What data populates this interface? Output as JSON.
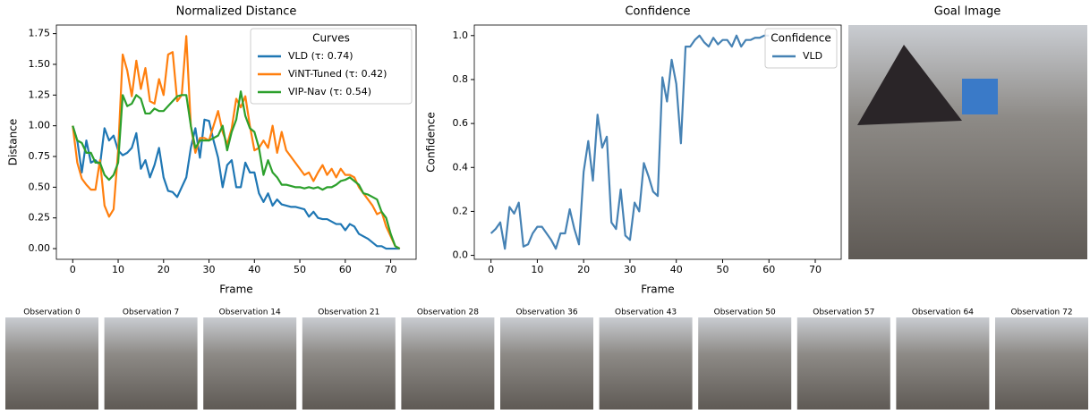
{
  "chart_data": [
    {
      "type": "line",
      "title": "Normalized Distance",
      "x_label": "Frame",
      "y_label": "Distance",
      "xlim": [
        -3.6,
        75.6
      ],
      "ylim": [
        -0.087,
        1.82
      ],
      "xticks": [
        0,
        10,
        20,
        30,
        40,
        50,
        60,
        70
      ],
      "yticks": [
        {
          "value": 0,
          "label": "0.00"
        },
        0.25,
        {
          "value": 0.5,
          "label": "0.50"
        },
        0.75,
        {
          "value": 1,
          "label": "1.00"
        },
        1.25,
        {
          "value": 1.5,
          "label": "1.50"
        },
        1.75
      ],
      "legend_title": "Curves",
      "legend": "upper right",
      "x": [
        0,
        1,
        2,
        3,
        4,
        5,
        6,
        7,
        8,
        9,
        10,
        11,
        12,
        13,
        14,
        15,
        16,
        17,
        18,
        19,
        20,
        21,
        22,
        23,
        24,
        25,
        26,
        27,
        28,
        29,
        30,
        31,
        32,
        33,
        34,
        35,
        36,
        37,
        38,
        39,
        40,
        41,
        42,
        43,
        44,
        45,
        46,
        47,
        48,
        49,
        50,
        51,
        52,
        53,
        54,
        55,
        56,
        57,
        58,
        59,
        60,
        61,
        62,
        63,
        64,
        65,
        66,
        67,
        68,
        69,
        70,
        71,
        72
      ],
      "series": [
        {
          "name": "VLD (τ: 0.74)",
          "color": "#1f77b4",
          "values": [
            1.0,
            0.88,
            0.62,
            0.88,
            0.7,
            0.72,
            0.68,
            0.98,
            0.88,
            0.92,
            0.8,
            0.76,
            0.78,
            0.82,
            0.94,
            0.65,
            0.72,
            0.58,
            0.68,
            0.82,
            0.58,
            0.47,
            0.46,
            0.42,
            0.5,
            0.58,
            0.82,
            0.98,
            0.74,
            1.05,
            1.04,
            0.88,
            0.74,
            0.5,
            0.68,
            0.72,
            0.5,
            0.5,
            0.7,
            0.62,
            0.62,
            0.45,
            0.38,
            0.45,
            0.35,
            0.4,
            0.36,
            0.35,
            0.34,
            0.34,
            0.33,
            0.32,
            0.26,
            0.3,
            0.25,
            0.24,
            0.24,
            0.22,
            0.2,
            0.2,
            0.15,
            0.2,
            0.18,
            0.12,
            0.1,
            0.08,
            0.05,
            0.02,
            0.02,
            0.0,
            0.0,
            0.0,
            0.0
          ]
        },
        {
          "name": "ViNT-Tuned (τ: 0.42)",
          "color": "#ff7f0e",
          "values": [
            1.0,
            0.7,
            0.57,
            0.52,
            0.48,
            0.48,
            0.72,
            0.35,
            0.26,
            0.32,
            0.8,
            1.58,
            1.45,
            1.24,
            1.53,
            1.3,
            1.47,
            1.2,
            1.18,
            1.38,
            1.25,
            1.58,
            1.6,
            1.2,
            1.25,
            1.73,
            1.0,
            0.78,
            0.9,
            0.9,
            0.88,
            1.0,
            1.12,
            0.95,
            0.85,
            0.98,
            1.22,
            1.15,
            1.24,
            1.0,
            0.8,
            0.82,
            0.88,
            0.82,
            1.0,
            0.78,
            0.95,
            0.8,
            0.75,
            0.7,
            0.65,
            0.6,
            0.62,
            0.55,
            0.62,
            0.68,
            0.6,
            0.65,
            0.58,
            0.65,
            0.6,
            0.6,
            0.58,
            0.5,
            0.45,
            0.4,
            0.35,
            0.28,
            0.3,
            0.18,
            0.1,
            0.02,
            0.0
          ]
        },
        {
          "name": "VIP-Nav (τ: 0.54)",
          "color": "#2ca02c",
          "values": [
            1.0,
            0.88,
            0.86,
            0.78,
            0.78,
            0.7,
            0.7,
            0.6,
            0.56,
            0.6,
            0.7,
            1.25,
            1.16,
            1.18,
            1.25,
            1.22,
            1.1,
            1.1,
            1.14,
            1.12,
            1.12,
            1.16,
            1.2,
            1.24,
            1.25,
            1.25,
            1.0,
            0.82,
            0.88,
            0.88,
            0.88,
            0.9,
            0.92,
            1.0,
            0.8,
            0.95,
            1.05,
            1.28,
            1.08,
            0.98,
            0.95,
            0.82,
            0.6,
            0.72,
            0.62,
            0.58,
            0.52,
            0.52,
            0.51,
            0.5,
            0.5,
            0.49,
            0.5,
            0.49,
            0.5,
            0.48,
            0.5,
            0.5,
            0.52,
            0.55,
            0.56,
            0.58,
            0.55,
            0.52,
            0.45,
            0.44,
            0.42,
            0.4,
            0.3,
            0.25,
            0.12,
            0.02,
            0.0
          ]
        }
      ]
    },
    {
      "type": "line",
      "title": "Confidence",
      "x_label": "Frame",
      "y_label": "Confidence",
      "xlim": [
        -3.6,
        75.6
      ],
      "ylim": [
        -0.018,
        1.048
      ],
      "xticks": [
        0,
        10,
        20,
        30,
        40,
        50,
        60,
        70
      ],
      "yticks": [
        {
          "value": 0,
          "label": "0.0"
        },
        0.2,
        0.4,
        0.6,
        0.8,
        {
          "value": 1,
          "label": "1.0"
        }
      ],
      "legend_title": "Confidence",
      "legend": "upper right",
      "x": [
        0,
        1,
        2,
        3,
        4,
        5,
        6,
        7,
        8,
        9,
        10,
        11,
        12,
        13,
        14,
        15,
        16,
        17,
        18,
        19,
        20,
        21,
        22,
        23,
        24,
        25,
        26,
        27,
        28,
        29,
        30,
        31,
        32,
        33,
        34,
        35,
        36,
        37,
        38,
        39,
        40,
        41,
        42,
        43,
        44,
        45,
        46,
        47,
        48,
        49,
        50,
        51,
        52,
        53,
        54,
        55,
        56,
        57,
        58,
        59,
        60
      ],
      "series": [
        {
          "name": "VLD",
          "color": "#4682b4",
          "values": [
            0.1,
            0.12,
            0.15,
            0.03,
            0.22,
            0.19,
            0.24,
            0.04,
            0.05,
            0.1,
            0.13,
            0.13,
            0.1,
            0.07,
            0.03,
            0.1,
            0.1,
            0.21,
            0.12,
            0.05,
            0.38,
            0.52,
            0.34,
            0.64,
            0.49,
            0.54,
            0.15,
            0.12,
            0.3,
            0.09,
            0.07,
            0.24,
            0.2,
            0.42,
            0.36,
            0.29,
            0.27,
            0.81,
            0.7,
            0.89,
            0.78,
            0.51,
            0.95,
            0.95,
            0.98,
            1.0,
            0.97,
            0.95,
            0.99,
            0.96,
            0.98,
            0.98,
            0.95,
            1.0,
            0.95,
            0.98,
            0.98,
            0.99,
            0.99,
            1.0,
            1.0
          ]
        }
      ]
    }
  ],
  "goal_image": {
    "title": "Goal Image"
  },
  "observations": [
    "Observation 0",
    "Observation 7",
    "Observation 14",
    "Observation 21",
    "Observation 28",
    "Observation 36",
    "Observation 43",
    "Observation 50",
    "Observation 57",
    "Observation 64",
    "Observation 72"
  ]
}
